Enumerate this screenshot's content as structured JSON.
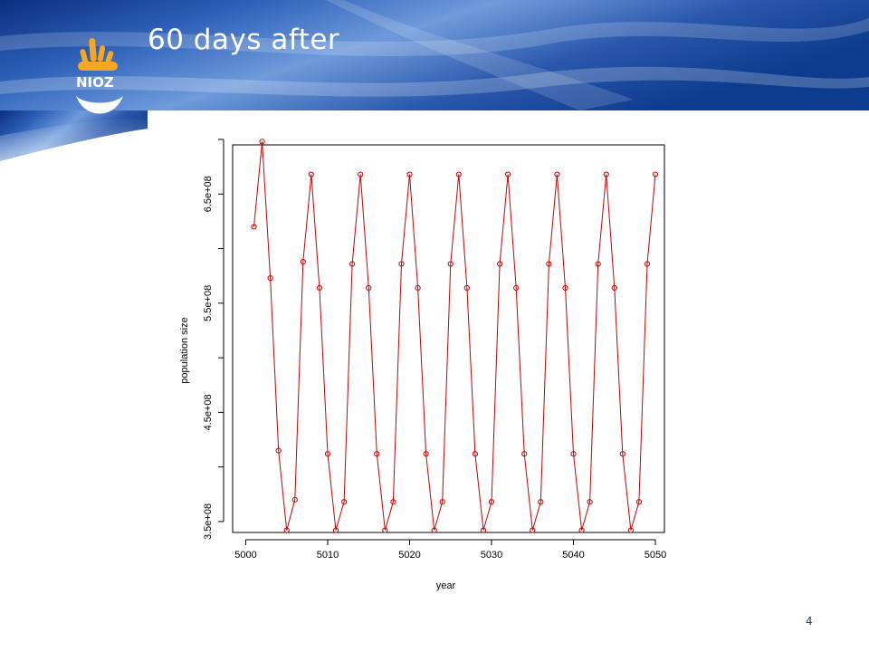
{
  "slide": {
    "title": "60 days after",
    "page_number": "4",
    "logo_text": "NIOZ"
  },
  "colors": {
    "banner_dark": "#0f3d92",
    "banner_light": "#dfeaf8",
    "title": "#ffffff",
    "logo_orange": "#f5a623",
    "series": "#cc0000"
  },
  "chart_data": {
    "type": "line",
    "title": "",
    "xlabel": "year",
    "ylabel": "population size",
    "xlim": [
      5000,
      5050
    ],
    "ylim": [
      340000000.0,
      695000000.0
    ],
    "x_ticks": [
      5000,
      5010,
      5020,
      5030,
      5040,
      5050
    ],
    "x_tick_labels": [
      "5000",
      "5010",
      "5020",
      "5030",
      "5040",
      "5050"
    ],
    "y_ticks": [
      350000000.0,
      400000000.0,
      450000000.0,
      500000000.0,
      550000000.0,
      600000000.0,
      650000000.0,
      700000000.0
    ],
    "y_tick_labels": [
      "3.5e+08",
      "",
      "4.5e+08",
      "",
      "5.5e+08",
      "",
      "6.5e+08",
      ""
    ],
    "grid": false,
    "markers": "open-circle",
    "series": [
      {
        "x": [
          5001,
          5002,
          5003,
          5004,
          5005,
          5006,
          5007,
          5008,
          5009,
          5010,
          5011,
          5012,
          5013,
          5014,
          5015,
          5016,
          5017,
          5018,
          5019,
          5020,
          5021,
          5022,
          5023,
          5024,
          5025,
          5026,
          5027,
          5028,
          5029,
          5030,
          5031,
          5032,
          5033,
          5034,
          5035,
          5036,
          5037,
          5038,
          5039,
          5040,
          5041,
          5042,
          5043,
          5044,
          5045,
          5046,
          5047,
          5048,
          5049,
          5050
        ],
        "y": [
          620000000.0,
          698000000.0,
          573000000.0,
          415000000.0,
          342000000.0,
          370000000.0,
          588000000.0,
          668000000.0,
          564000000.0,
          412000000.0,
          342000000.0,
          368000000.0,
          586000000.0,
          668000000.0,
          564000000.0,
          412000000.0,
          342000000.0,
          368000000.0,
          586000000.0,
          668000000.0,
          564000000.0,
          412000000.0,
          342000000.0,
          368000000.0,
          586000000.0,
          668000000.0,
          564000000.0,
          412000000.0,
          342000000.0,
          368000000.0,
          586000000.0,
          668000000.0,
          564000000.0,
          412000000.0,
          342000000.0,
          368000000.0,
          586000000.0,
          668000000.0,
          564000000.0,
          412000000.0,
          342000000.0,
          368000000.0,
          586000000.0,
          668000000.0,
          564000000.0,
          412000000.0,
          342000000.0,
          368000000.0,
          586000000.0,
          668000000.0
        ]
      }
    ]
  }
}
